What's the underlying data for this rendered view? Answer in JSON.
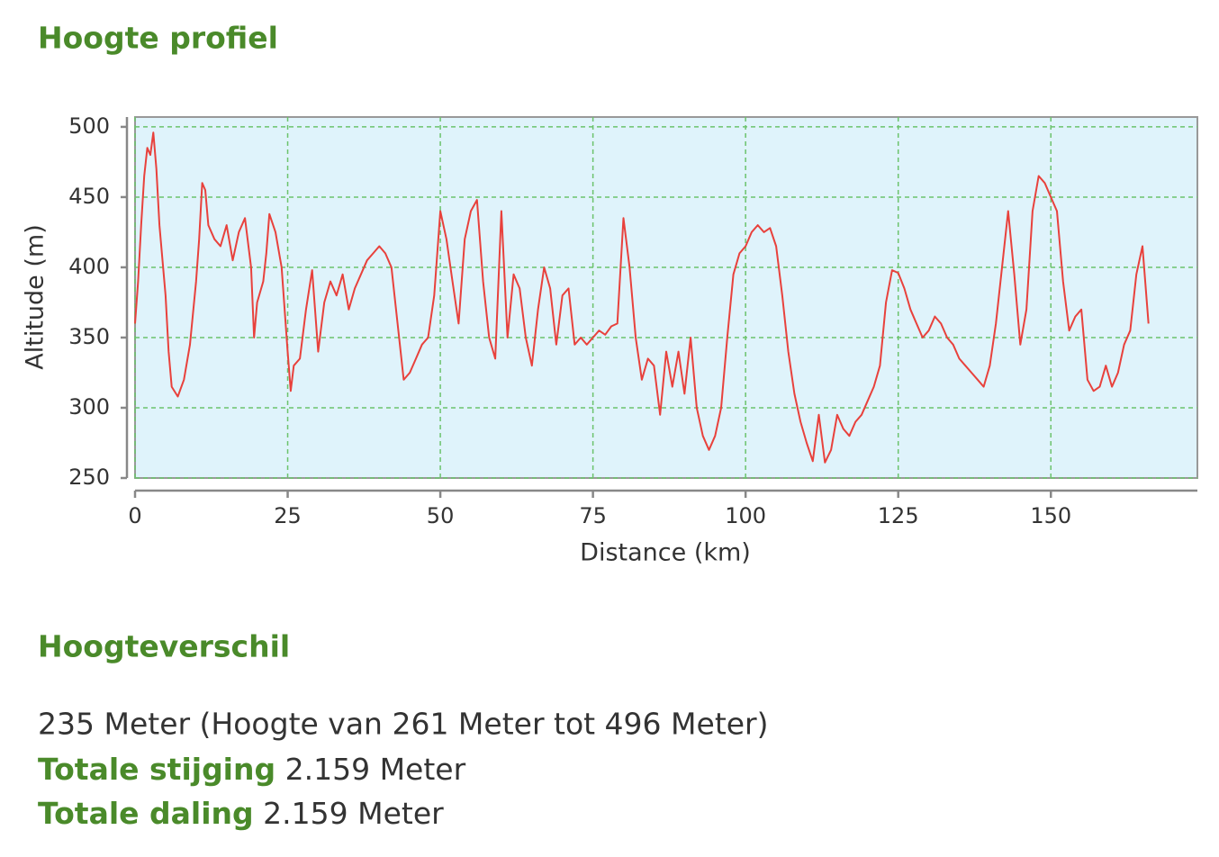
{
  "header": {
    "title": "Hoogte profiel"
  },
  "chart_data": {
    "type": "line",
    "xlabel": "Distance (km)",
    "ylabel": "Altitude (m)",
    "xlim": [
      0,
      174
    ],
    "xticks": [
      0,
      25,
      50,
      75,
      100,
      125,
      150
    ],
    "ylim": [
      250,
      507
    ],
    "yticks": [
      250,
      300,
      350,
      400,
      450,
      500
    ],
    "grid": true,
    "plot_background": "#dff3fb",
    "color": "#e8413c",
    "x": [
      0,
      0.5,
      1,
      1.5,
      2,
      2.5,
      3,
      3.5,
      4,
      5,
      5.5,
      6,
      7,
      8,
      9,
      10,
      10.5,
      11,
      11.5,
      12,
      13,
      14,
      15,
      16,
      17,
      18,
      19,
      19.5,
      20,
      21,
      21.5,
      22,
      23,
      24,
      25,
      25.5,
      26,
      27,
      28,
      29,
      30,
      31,
      32,
      33,
      34,
      35,
      36,
      37,
      38,
      39,
      40,
      41,
      42,
      43,
      44,
      45,
      46,
      47,
      48,
      49,
      50,
      51,
      52,
      53,
      54,
      55,
      56,
      57,
      58,
      59,
      60,
      61,
      62,
      63,
      64,
      65,
      66,
      67,
      68,
      69,
      70,
      71,
      72,
      73,
      74,
      75,
      76,
      77,
      78,
      79,
      80,
      81,
      82,
      83,
      84,
      85,
      86,
      87,
      88,
      89,
      90,
      91,
      92,
      93,
      94,
      95,
      96,
      97,
      98,
      99,
      100,
      101,
      102,
      103,
      104,
      105,
      106,
      107,
      108,
      109,
      110,
      111,
      112,
      113,
      114,
      115,
      116,
      117,
      118,
      119,
      120,
      121,
      122,
      123,
      124,
      125,
      126,
      127,
      128,
      129,
      130,
      131,
      132,
      133,
      134,
      135,
      136,
      137,
      138,
      139,
      140,
      141,
      142,
      143,
      144,
      145,
      146,
      147,
      148,
      149,
      150,
      151,
      152,
      153,
      154,
      155,
      156,
      157,
      158,
      159,
      160,
      161,
      162,
      163,
      164,
      165,
      166
    ],
    "values": [
      360,
      390,
      430,
      465,
      485,
      480,
      496,
      470,
      430,
      380,
      340,
      315,
      308,
      320,
      345,
      390,
      420,
      460,
      455,
      430,
      420,
      415,
      430,
      405,
      425,
      435,
      400,
      350,
      375,
      390,
      410,
      438,
      425,
      400,
      340,
      312,
      330,
      335,
      370,
      398,
      340,
      375,
      390,
      380,
      395,
      370,
      385,
      395,
      405,
      410,
      415,
      410,
      400,
      360,
      320,
      325,
      335,
      345,
      350,
      380,
      440,
      420,
      390,
      360,
      420,
      440,
      448,
      390,
      350,
      335,
      440,
      350,
      395,
      385,
      350,
      330,
      370,
      400,
      385,
      345,
      380,
      385,
      345,
      350,
      345,
      350,
      355,
      352,
      358,
      360,
      435,
      400,
      350,
      320,
      335,
      330,
      295,
      340,
      315,
      340,
      310,
      350,
      300,
      280,
      270,
      280,
      300,
      350,
      395,
      410,
      415,
      425,
      430,
      425,
      428,
      415,
      380,
      340,
      310,
      290,
      275,
      262,
      295,
      261,
      270,
      295,
      285,
      280,
      290,
      295,
      305,
      315,
      330,
      375,
      398,
      396,
      385,
      370,
      360,
      350,
      355,
      365,
      360,
      350,
      345,
      335,
      330,
      325,
      320,
      315,
      330,
      360,
      400,
      440,
      395,
      345,
      370,
      440,
      465,
      460,
      450,
      440,
      390,
      355,
      365,
      370,
      320,
      312,
      315,
      330,
      315,
      325,
      345,
      355,
      395,
      415,
      360
    ]
  },
  "summary": {
    "title": "Hoogteverschil",
    "difference": "235 Meter (Hoogte van 261 Meter tot 496 Meter)",
    "ascent": {
      "label": "Totale stijging",
      "value": "2.159 Meter"
    },
    "descent": {
      "label": "Totale daling",
      "value": "2.159 Meter"
    }
  }
}
